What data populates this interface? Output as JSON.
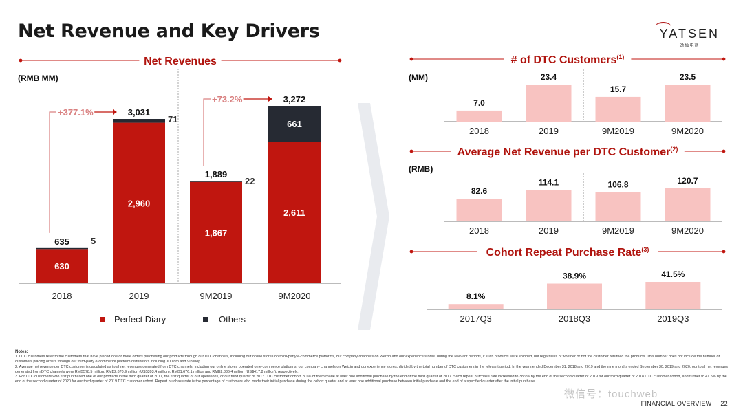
{
  "page": {
    "title": "Net Revenue and Key Drivers",
    "logo": "YATSEN",
    "logo_sub": "逸仙电商",
    "footer_section": "FINANCIAL OVERVIEW",
    "footer_page": "22",
    "watermark": "微信号：touchweb"
  },
  "notes": {
    "heading": "Notes:",
    "items": [
      "1. DTC customers refer to the customers that have placed one or more orders purchasing our products through our DTC channels, including our online stores on third-party e-commerce platforms, our company channels on Weixin and our experience stores, during the relevant periods, if such products were shipped, but regardless of whether or not the customer returned the products. This number does not include the number of customers placing orders through our third-party e-commerce platform distributors including JD.com and Vipshop.",
      "2. Average net revenue per DTC customer is calculated as total net revenues generated from DTC channels, including our online stores operated on e-commerce platforms, our company channels on Weixin and our experience stores, divided by the total number of DTC customers in the relevant period. In the years ended December 31, 2018 and 2019 and the nine months ended September 30, 2019 and 2020, our total net revenues generated from DTC channels were RMB578.5 million, RMB2,670.9 million (US$393.4 million), RMB1,676.1 million and RMB2,836.4 million (US$417.8 million), respectively.",
      "3. For DTC customers who first purchased one of our products in the third quarter of 2017, the first quarter of our operations, or our third quarter of 2017 DTC customer cohort, 8.1% of them made at least one additional purchase by the end of the third quarter of 2017. Such repeat purchase rate increased to 38.9% by the end of the second quarter of 2019 for our third quarter of 2018 DTC customer cohort, and further to 41.5% by the end of the second quarter of 2020 for our third quarter of 2019 DTC customer cohort. Repeat purchase rate is the percentage of customers who made their initial purchase during the cohort quarter and at least one additional purchase between initial purchase and the end of a specified quarter after the initial purchase."
    ]
  },
  "chart_data": [
    {
      "type": "bar",
      "title": "Net Revenues",
      "ylabel": "(RMB MM)",
      "stacked": true,
      "categories": [
        "2018",
        "2019",
        "9M2019",
        "9M2020"
      ],
      "series": [
        {
          "name": "Perfect Diary",
          "values": [
            630,
            2960,
            1867,
            2611
          ],
          "color": "#c0160f"
        },
        {
          "name": "Others",
          "values": [
            5,
            71,
            22,
            661
          ],
          "color": "#262a33"
        }
      ],
      "totals": [
        "635",
        "3,031",
        "1,889",
        "3,272"
      ],
      "segment_labels": {
        "perfect": [
          "630",
          "2,960",
          "1,867",
          "2,611"
        ],
        "others": [
          "5",
          "71",
          "22",
          "661"
        ]
      },
      "growth": [
        {
          "label": "+377.1%",
          "from": 0,
          "to": 1
        },
        {
          "label": "+73.2%",
          "from": 2,
          "to": 3
        }
      ],
      "ylim": [
        0,
        3272
      ],
      "legend": "bottom"
    },
    {
      "type": "bar",
      "title": "# of DTC Customers",
      "title_sup": "(1)",
      "ylabel": "(MM)",
      "categories": [
        "2018",
        "2019",
        "9M2019",
        "9M2020"
      ],
      "values": [
        7.0,
        23.4,
        15.7,
        23.5
      ],
      "labels": [
        "7.0",
        "23.4",
        "15.7",
        "23.5"
      ],
      "ylim": [
        0,
        23.5
      ],
      "color": "#f8c3c1"
    },
    {
      "type": "bar",
      "title": "Average Net Revenue per DTC Customer",
      "title_sup": "(2)",
      "ylabel": "(RMB)",
      "categories": [
        "2018",
        "2019",
        "9M2019",
        "9M2020"
      ],
      "values": [
        82.6,
        114.1,
        106.8,
        120.7
      ],
      "labels": [
        "82.6",
        "114.1",
        "106.8",
        "120.7"
      ],
      "ylim": [
        0,
        120.7
      ],
      "color": "#f8c3c1"
    },
    {
      "type": "bar",
      "title": "Cohort Repeat Purchase Rate",
      "title_sup": "(3)",
      "categories": [
        "2017Q3",
        "2018Q3",
        "2019Q3"
      ],
      "values": [
        8.1,
        38.9,
        41.5
      ],
      "labels": [
        "8.1%",
        "38.9%",
        "41.5%"
      ],
      "ylim": [
        0,
        41.5
      ],
      "color": "#f8c3c1"
    }
  ]
}
